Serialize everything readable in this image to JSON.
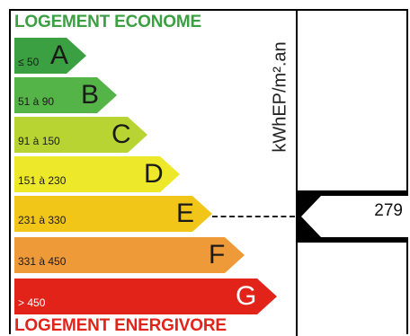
{
  "header_text": "LOGEMENT ECONOME",
  "footer_text": "LOGEMENT ENERGIVORE",
  "unit_label": "kWhEP/m².an",
  "value": "279",
  "bands": [
    {
      "letter": "A",
      "range": "≤ 50",
      "color": "#3aa041"
    },
    {
      "letter": "B",
      "range": "51 à 90",
      "color": "#55b447"
    },
    {
      "letter": "C",
      "range": "91 à 150",
      "color": "#b7d433"
    },
    {
      "letter": "D",
      "range": "151 à 230",
      "color": "#eee82a"
    },
    {
      "letter": "E",
      "range": "231 à 330",
      "color": "#f2c618"
    },
    {
      "letter": "F",
      "range": "331 à 450",
      "color": "#ee9a39"
    },
    {
      "letter": "G",
      "range": "> 450",
      "color": "#e2231a"
    }
  ]
}
